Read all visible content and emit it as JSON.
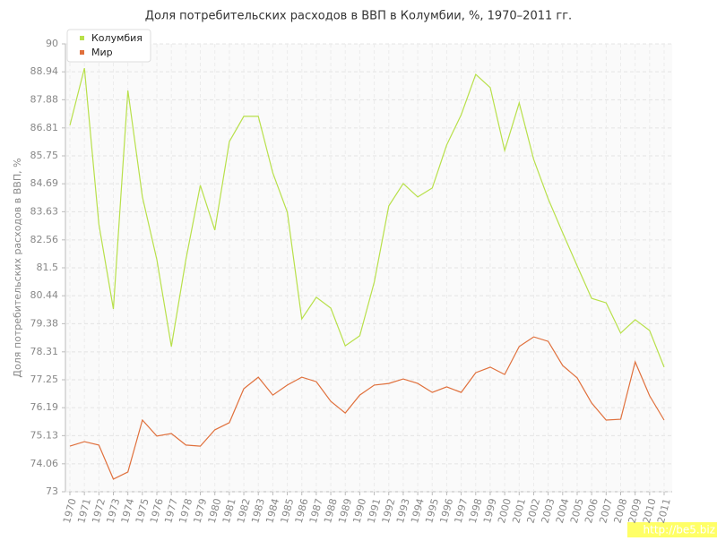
{
  "chart_data": {
    "type": "line",
    "title": "Доля потребительских расходов в ВВП в Колумбии, %, 1970–2011 гг.",
    "y_label": "Доля потребительских расходов в ВВП, %",
    "watermark": "http://be5.biz",
    "x": [
      1970,
      1971,
      1972,
      1973,
      1974,
      1975,
      1976,
      1977,
      1978,
      1979,
      1980,
      1981,
      1982,
      1983,
      1984,
      1985,
      1986,
      1987,
      1988,
      1989,
      1990,
      1991,
      1992,
      1993,
      1994,
      1995,
      1996,
      1997,
      1998,
      1999,
      2000,
      2001,
      2002,
      2003,
      2004,
      2005,
      2006,
      2007,
      2008,
      2009,
      2010,
      2011
    ],
    "xlim": [
      1970,
      2011
    ],
    "ylim": [
      73,
      90
    ],
    "yticks": [
      73,
      74.06,
      75.13,
      76.19,
      77.25,
      78.31,
      79.38,
      80.44,
      81.5,
      82.56,
      83.63,
      84.69,
      85.75,
      86.81,
      87.88,
      88.94,
      90
    ],
    "grid": true,
    "legend": "top-left",
    "series": [
      {
        "name": "Колумбия",
        "color": "#b8e04a",
        "values": [
          86.91,
          89.08,
          83.16,
          79.94,
          88.23,
          84.19,
          81.81,
          78.51,
          81.81,
          84.63,
          82.93,
          86.29,
          87.25,
          87.25,
          85.1,
          83.61,
          79.56,
          80.38,
          79.97,
          78.54,
          78.92,
          80.96,
          83.85,
          84.7,
          84.19,
          84.53,
          86.16,
          87.31,
          88.84,
          88.34,
          85.95,
          87.76,
          85.61,
          84.12,
          82.83,
          81.57,
          80.34,
          80.17,
          79.02,
          79.53,
          79.12,
          77.73
        ]
      },
      {
        "name": "Мир",
        "color": "#e0703c",
        "values": [
          74.73,
          74.9,
          74.77,
          73.48,
          73.75,
          75.72,
          75.11,
          75.21,
          74.77,
          74.73,
          75.35,
          75.62,
          76.91,
          77.35,
          76.67,
          77.05,
          77.35,
          77.18,
          76.43,
          75.99,
          76.67,
          77.05,
          77.11,
          77.28,
          77.11,
          76.77,
          76.98,
          76.77,
          77.52,
          77.73,
          77.45,
          78.51,
          78.88,
          78.71,
          77.79,
          77.32,
          76.37,
          75.72,
          75.75,
          77.93,
          76.64,
          75.72
        ]
      }
    ]
  }
}
